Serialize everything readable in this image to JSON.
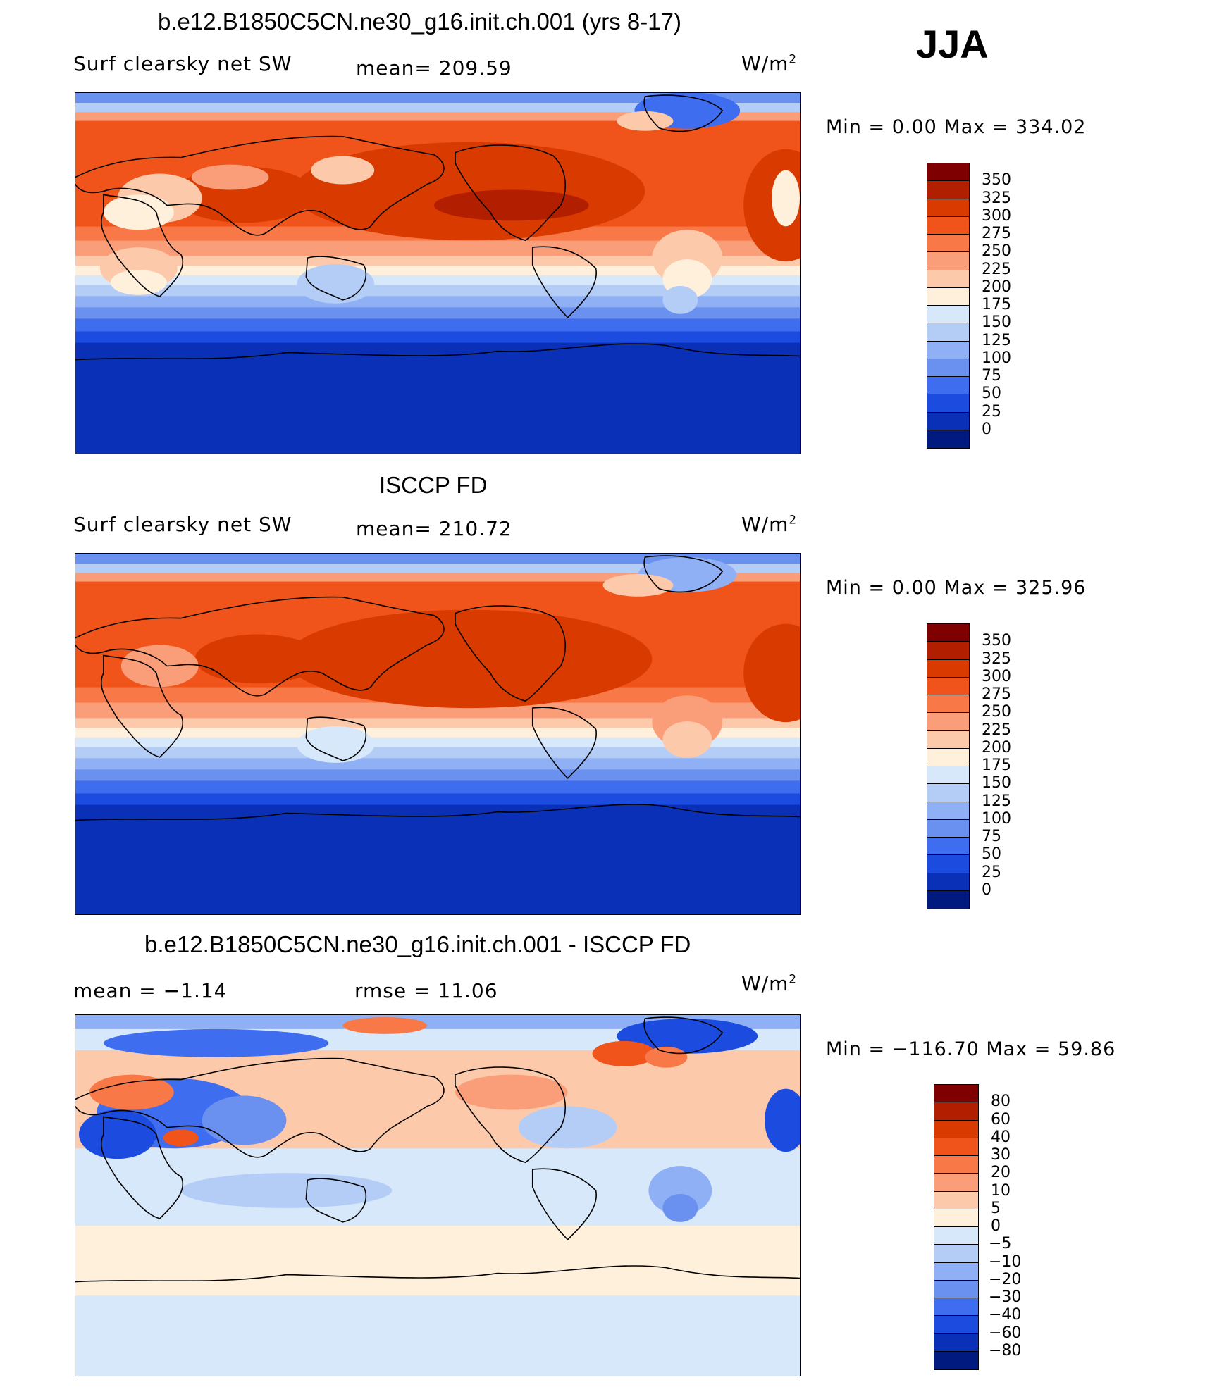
{
  "season": "JJA",
  "units": "W/m",
  "units_exp": "2",
  "panels": [
    {
      "title": "b.e12.B1850C5CN.ne30_g16.init.ch.001 (yrs 8-17)",
      "left_label": "Surf clearsky net SW",
      "stat_text": "mean=  209.59",
      "min_text": "Min  =      0.00  Max  =  334.02"
    },
    {
      "title": "ISCCP FD",
      "left_label": "Surf clearsky net SW",
      "stat_text": "mean=  210.72",
      "min_text": "Min  =      0.00  Max  =  325.96"
    },
    {
      "title": "b.e12.B1850C5CN.ne30_g16.init.ch.001 - ISCCP FD",
      "left_label": "mean  =    −1.14",
      "stat_text": "rmse  =    11.06",
      "min_text": "Min  =  −116.70  Max  =    59.86"
    }
  ],
  "colorbars": [
    {
      "levels": [
        "350",
        "325",
        "300",
        "275",
        "250",
        "225",
        "200",
        "175",
        "150",
        "125",
        "100",
        "75",
        "50",
        "25",
        "0"
      ],
      "colors": [
        "#7f0000",
        "#b21f00",
        "#d93a00",
        "#f0541a",
        "#f87848",
        "#fa9e7a",
        "#fcc9aa",
        "#fff0dc",
        "#d6e8fa",
        "#b4cdf7",
        "#8fb0f5",
        "#6a90f0",
        "#3f6df0",
        "#1c4be0",
        "#0a30b8",
        "#001a80"
      ]
    },
    {
      "levels": [
        "350",
        "325",
        "300",
        "275",
        "250",
        "225",
        "200",
        "175",
        "150",
        "125",
        "100",
        "75",
        "50",
        "25",
        "0"
      ],
      "colors": [
        "#7f0000",
        "#b21f00",
        "#d93a00",
        "#f0541a",
        "#f87848",
        "#fa9e7a",
        "#fcc9aa",
        "#fff0dc",
        "#d6e8fa",
        "#b4cdf7",
        "#8fb0f5",
        "#6a90f0",
        "#3f6df0",
        "#1c4be0",
        "#0a30b8",
        "#001a80"
      ]
    },
    {
      "levels": [
        "80",
        "60",
        "40",
        "30",
        "20",
        "10",
        "5",
        "0",
        "−5",
        "−10",
        "−20",
        "−30",
        "−40",
        "−60",
        "−80"
      ],
      "colors": [
        "#7f0000",
        "#b21f00",
        "#d93a00",
        "#f0541a",
        "#f87848",
        "#fa9e7a",
        "#fcc9aa",
        "#fff0dc",
        "#d6e8fa",
        "#b4cdf7",
        "#8fb0f5",
        "#6a90f0",
        "#3f6df0",
        "#1c4be0",
        "#0a30b8",
        "#001a80"
      ]
    }
  ]
}
